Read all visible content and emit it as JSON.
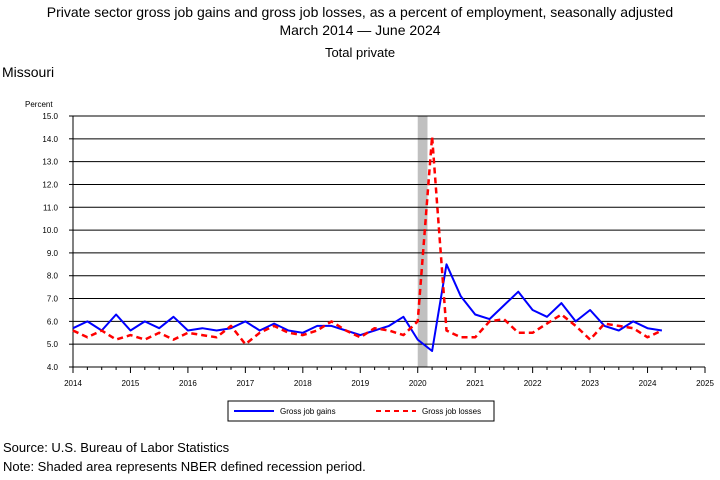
{
  "header": {
    "title": "Private sector gross job gains and gross job losses, as a percent of employment, seasonally adjusted",
    "period": "March 2014 — June 2024",
    "subtitle": "Total private",
    "area": "Missouri"
  },
  "footer": {
    "source": "Source: U.S. Bureau of Labor Statistics",
    "note": "Note: Shaded area represents NBER defined recession period."
  },
  "chart_data": {
    "type": "line",
    "ylabel": "Percent",
    "xlabel": "",
    "xlim": [
      2014,
      2025
    ],
    "ylim": [
      4.0,
      15.0
    ],
    "y_ticks": [
      "4.0",
      "5.0",
      "6.0",
      "7.0",
      "8.0",
      "9.0",
      "10.0",
      "11.0",
      "12.0",
      "13.0",
      "14.0",
      "15.0"
    ],
    "x_ticks": [
      "2014",
      "2015",
      "2016",
      "2017",
      "2018",
      "2019",
      "2020",
      "2021",
      "2022",
      "2023",
      "2024",
      "2025"
    ],
    "grid": "horizontal",
    "legend_position": "bottom",
    "recession": {
      "start": 2020.0,
      "end": 2020.17,
      "color": "#c0c0c0"
    },
    "x": [
      2014.0,
      2014.25,
      2014.5,
      2014.75,
      2015.0,
      2015.25,
      2015.5,
      2015.75,
      2016.0,
      2016.25,
      2016.5,
      2016.75,
      2017.0,
      2017.25,
      2017.5,
      2017.75,
      2018.0,
      2018.25,
      2018.5,
      2018.75,
      2019.0,
      2019.25,
      2019.5,
      2019.75,
      2020.0,
      2020.25,
      2020.5,
      2020.75,
      2021.0,
      2021.25,
      2021.5,
      2021.75,
      2022.0,
      2022.25,
      2022.5,
      2022.75,
      2023.0,
      2023.25,
      2023.5,
      2023.75,
      2024.0,
      2024.25
    ],
    "series": [
      {
        "name": "Gross job gains",
        "color": "#0000ff",
        "dash": "solid",
        "values": [
          5.7,
          6.0,
          5.6,
          6.3,
          5.6,
          6.0,
          5.7,
          6.2,
          5.6,
          5.7,
          5.6,
          5.7,
          6.0,
          5.6,
          5.9,
          5.6,
          5.5,
          5.8,
          5.8,
          5.6,
          5.4,
          5.6,
          5.8,
          6.2,
          5.2,
          4.7,
          8.5,
          7.1,
          6.3,
          6.1,
          6.7,
          7.3,
          6.5,
          6.2,
          6.8,
          6.0,
          6.5,
          5.8,
          5.6,
          6.0,
          5.7,
          5.6
        ]
      },
      {
        "name": "Gross job losses",
        "color": "#ff0000",
        "dash": "dashed",
        "values": [
          5.6,
          5.3,
          5.6,
          5.2,
          5.4,
          5.2,
          5.5,
          5.2,
          5.5,
          5.4,
          5.3,
          5.8,
          5.0,
          5.5,
          5.8,
          5.5,
          5.4,
          5.6,
          6.0,
          5.6,
          5.3,
          5.7,
          5.6,
          5.4,
          6.0,
          14.1,
          5.6,
          5.3,
          5.3,
          6.0,
          6.1,
          5.5,
          5.5,
          5.9,
          6.3,
          5.8,
          5.2,
          5.9,
          5.8,
          5.7,
          5.3,
          5.6
        ]
      }
    ]
  }
}
